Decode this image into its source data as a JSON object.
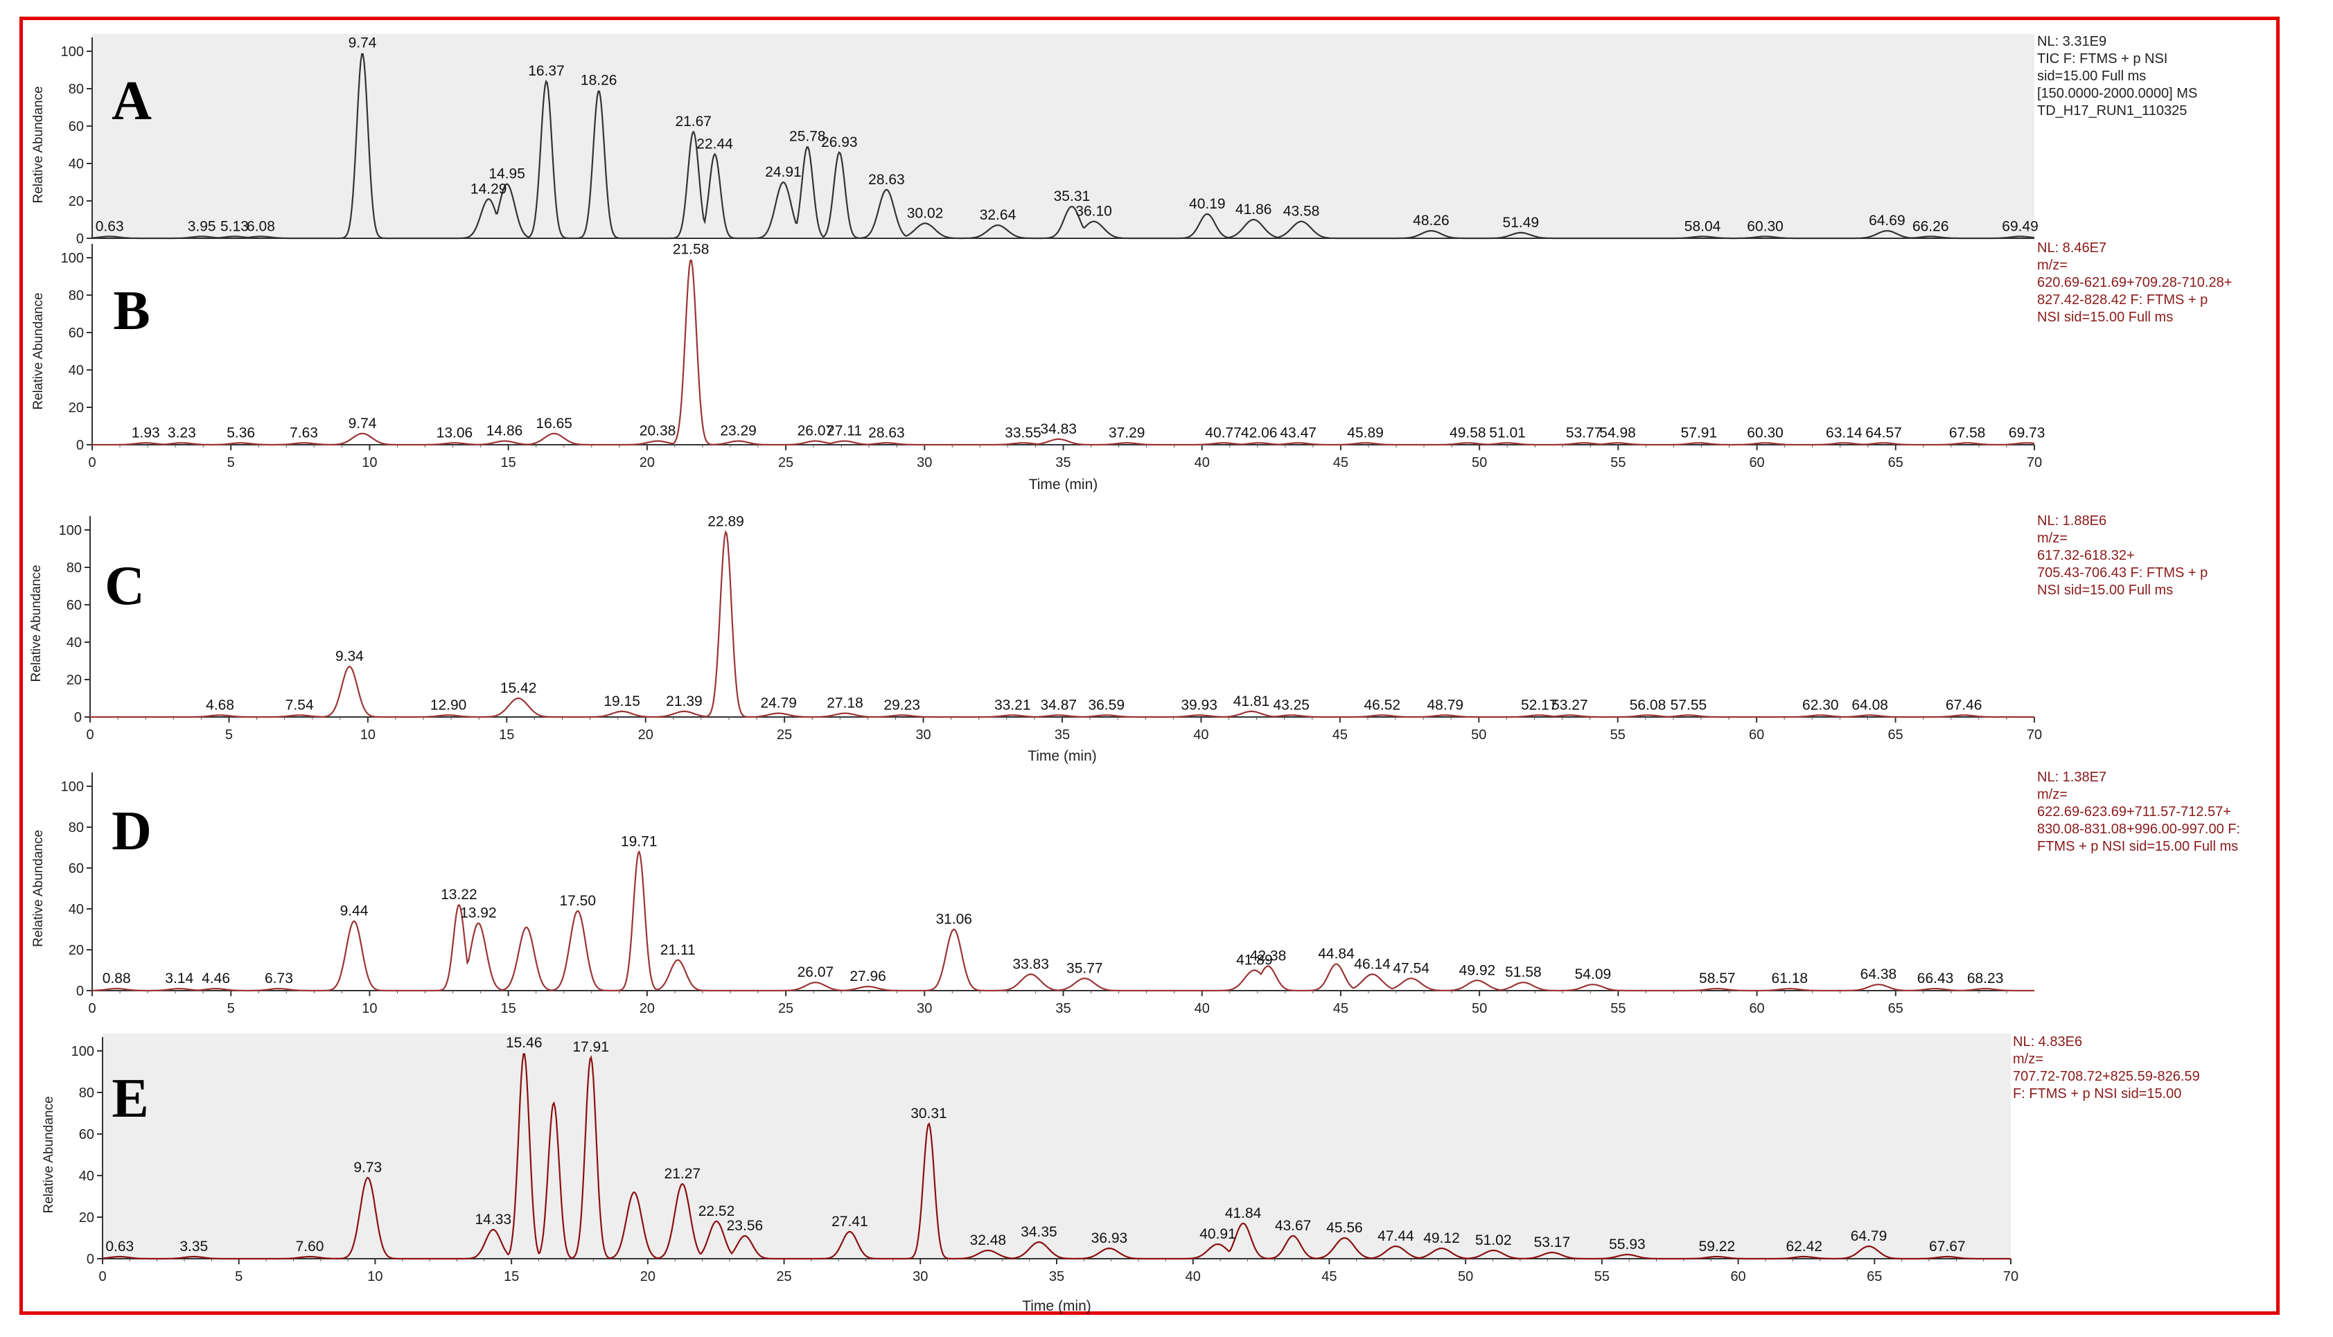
{
  "chart_data": [
    {
      "type": "line",
      "panel_letter": "A",
      "xlabel": "",
      "ylabel": "Relative Abundance",
      "xlim": [
        0,
        70
      ],
      "ylim": [
        0,
        100
      ],
      "y_ticks": [
        0,
        20,
        40,
        60,
        80,
        100
      ],
      "x_ticks": [],
      "background": "#eeeeee",
      "line_color": "#333333",
      "info_color": "#222222",
      "info": [
        "NL: 3.31E9",
        "TIC F: FTMS + p NSI",
        "sid=15.00  Full ms",
        "[150.0000-2000.0000]  MS",
        "TD_H17_RUN1_110325"
      ],
      "peaks": [
        {
          "x": 0.63,
          "label": "0.63",
          "y": 1
        },
        {
          "x": 3.95,
          "label": "3.95",
          "y": 1
        },
        {
          "x": 5.13,
          "label": "5.13",
          "y": 1
        },
        {
          "x": 6.08,
          "label": "6.08",
          "y": 1
        },
        {
          "x": 9.74,
          "label": "9.74",
          "y": 99
        },
        {
          "x": 14.29,
          "label": "14.29",
          "y": 21
        },
        {
          "x": 14.95,
          "label": "14.95",
          "y": 29
        },
        {
          "x": 16.37,
          "label": "16.37",
          "y": 84
        },
        {
          "x": 18.26,
          "label": "18.26",
          "y": 79
        },
        {
          "x": 21.67,
          "label": "21.67",
          "y": 57
        },
        {
          "x": 22.44,
          "label": "22.44",
          "y": 45
        },
        {
          "x": 24.91,
          "label": "24.91",
          "y": 30
        },
        {
          "x": 25.78,
          "label": "25.78",
          "y": 49
        },
        {
          "x": 26.93,
          "label": "26.93",
          "y": 46
        },
        {
          "x": 28.63,
          "label": "28.63",
          "y": 26
        },
        {
          "x": 30.02,
          "label": "30.02",
          "y": 8
        },
        {
          "x": 32.64,
          "label": "32.64",
          "y": 7
        },
        {
          "x": 35.31,
          "label": "35.31",
          "y": 17
        },
        {
          "x": 36.1,
          "label": "36.10",
          "y": 9
        },
        {
          "x": 40.19,
          "label": "40.19",
          "y": 13
        },
        {
          "x": 41.86,
          "label": "41.86",
          "y": 10
        },
        {
          "x": 43.58,
          "label": "43.58",
          "y": 9
        },
        {
          "x": 48.26,
          "label": "48.26",
          "y": 4
        },
        {
          "x": 51.49,
          "label": "51.49",
          "y": 3
        },
        {
          "x": 58.04,
          "label": "58.04",
          "y": 1
        },
        {
          "x": 60.3,
          "label": "60.30",
          "y": 1
        },
        {
          "x": 64.69,
          "label": "64.69",
          "y": 4
        },
        {
          "x": 66.26,
          "label": "66.26",
          "y": 1
        },
        {
          "x": 69.49,
          "label": "69.49",
          "y": 1
        }
      ]
    },
    {
      "type": "line",
      "panel_letter": "B",
      "xlabel": "Time (min)",
      "ylabel": "Relative Abundance",
      "xlim": [
        0,
        70
      ],
      "ylim": [
        0,
        100
      ],
      "y_ticks": [
        0,
        20,
        40,
        60,
        80,
        100
      ],
      "x_ticks": [
        0,
        5,
        10,
        15,
        20,
        25,
        30,
        35,
        40,
        45,
        50,
        55,
        60,
        65,
        70
      ],
      "background": "#ffffff",
      "line_color": "#9b3535",
      "info_color": "#8b1a1a",
      "info": [
        "NL: 8.46E7",
        "m/z=",
        "620.69-621.69+709.28-710.28+",
        "827.42-828.42 F: FTMS + p",
        "NSI sid=15.00  Full ms"
      ],
      "peaks": [
        {
          "x": 1.93,
          "label": "1.93",
          "y": 1
        },
        {
          "x": 3.23,
          "label": "3.23",
          "y": 1
        },
        {
          "x": 5.36,
          "label": "5.36",
          "y": 1
        },
        {
          "x": 7.63,
          "label": "7.63",
          "y": 1
        },
        {
          "x": 9.74,
          "label": "9.74",
          "y": 6
        },
        {
          "x": 13.06,
          "label": "13.06",
          "y": 1
        },
        {
          "x": 14.86,
          "label": "14.86",
          "y": 2
        },
        {
          "x": 16.65,
          "label": "16.65",
          "y": 6
        },
        {
          "x": 20.38,
          "label": "20.38",
          "y": 2
        },
        {
          "x": 21.58,
          "label": "21.58",
          "y": 99
        },
        {
          "x": 23.29,
          "label": "23.29",
          "y": 2
        },
        {
          "x": 26.07,
          "label": "26.07",
          "y": 2
        },
        {
          "x": 27.11,
          "label": "27.11",
          "y": 2
        },
        {
          "x": 28.63,
          "label": "28.63",
          "y": 1
        },
        {
          "x": 33.55,
          "label": "33.55",
          "y": 1
        },
        {
          "x": 34.83,
          "label": "34.83",
          "y": 3
        },
        {
          "x": 37.29,
          "label": "37.29",
          "y": 1
        },
        {
          "x": 40.77,
          "label": "40.77",
          "y": 1
        },
        {
          "x": 42.06,
          "label": "42.06",
          "y": 1
        },
        {
          "x": 43.47,
          "label": "43.47",
          "y": 1
        },
        {
          "x": 45.89,
          "label": "45.89",
          "y": 1
        },
        {
          "x": 49.58,
          "label": "49.58",
          "y": 1
        },
        {
          "x": 51.01,
          "label": "51.01",
          "y": 1
        },
        {
          "x": 53.77,
          "label": "53.77",
          "y": 1
        },
        {
          "x": 54.98,
          "label": "54.98",
          "y": 1
        },
        {
          "x": 57.91,
          "label": "57.91",
          "y": 1
        },
        {
          "x": 60.3,
          "label": "60.30",
          "y": 1
        },
        {
          "x": 63.14,
          "label": "63.14",
          "y": 1
        },
        {
          "x": 64.57,
          "label": "64.57",
          "y": 1
        },
        {
          "x": 67.58,
          "label": "67.58",
          "y": 1
        },
        {
          "x": 69.73,
          "label": "69.73",
          "y": 1
        }
      ]
    },
    {
      "type": "line",
      "panel_letter": "C",
      "xlabel": "Time (min)",
      "ylabel": "Relative Abundance",
      "xlim": [
        0,
        70
      ],
      "ylim": [
        0,
        100
      ],
      "y_ticks": [
        0,
        20,
        40,
        60,
        80,
        100
      ],
      "x_ticks": [
        0,
        5,
        10,
        15,
        20,
        25,
        30,
        35,
        40,
        45,
        50,
        55,
        60,
        65,
        70
      ],
      "background": "#ffffff",
      "line_color": "#9b3535",
      "info_color": "#8b1a1a",
      "info": [
        "NL: 1.88E6",
        "m/z=",
        "617.32-618.32+",
        "705.43-706.43 F: FTMS + p",
        "NSI sid=15.00  Full ms"
      ],
      "peaks": [
        {
          "x": 4.68,
          "label": "4.68",
          "y": 1
        },
        {
          "x": 7.54,
          "label": "7.54",
          "y": 1
        },
        {
          "x": 9.34,
          "label": "9.34",
          "y": 27
        },
        {
          "x": 12.9,
          "label": "12.90",
          "y": 1
        },
        {
          "x": 15.42,
          "label": "15.42",
          "y": 10
        },
        {
          "x": 19.15,
          "label": "19.15",
          "y": 3
        },
        {
          "x": 21.39,
          "label": "21.39",
          "y": 3
        },
        {
          "x": 22.89,
          "label": "22.89",
          "y": 99
        },
        {
          "x": 24.79,
          "label": "24.79",
          "y": 2
        },
        {
          "x": 27.18,
          "label": "27.18",
          "y": 2
        },
        {
          "x": 29.23,
          "label": "29.23",
          "y": 1
        },
        {
          "x": 33.21,
          "label": "33.21",
          "y": 1
        },
        {
          "x": 34.87,
          "label": "34.87",
          "y": 1
        },
        {
          "x": 36.59,
          "label": "36.59",
          "y": 1
        },
        {
          "x": 39.93,
          "label": "39.93",
          "y": 1
        },
        {
          "x": 41.81,
          "label": "41.81",
          "y": 3
        },
        {
          "x": 43.25,
          "label": "43.25",
          "y": 1
        },
        {
          "x": 46.52,
          "label": "46.52",
          "y": 1
        },
        {
          "x": 48.79,
          "label": "48.79",
          "y": 1
        },
        {
          "x": 52.17,
          "label": "52.17",
          "y": 1
        },
        {
          "x": 53.27,
          "label": "53.27",
          "y": 1
        },
        {
          "x": 56.08,
          "label": "56.08",
          "y": 1
        },
        {
          "x": 57.55,
          "label": "57.55",
          "y": 1
        },
        {
          "x": 62.3,
          "label": "62.30",
          "y": 1
        },
        {
          "x": 64.08,
          "label": "64.08",
          "y": 1
        },
        {
          "x": 67.46,
          "label": "67.46",
          "y": 1
        }
      ]
    },
    {
      "type": "line",
      "panel_letter": "D",
      "xlabel": "",
      "ylabel": "Relative Abundance",
      "xlim": [
        0,
        70
      ],
      "ylim": [
        0,
        100
      ],
      "y_ticks": [
        0,
        20,
        40,
        60,
        80,
        100
      ],
      "x_ticks": [
        0,
        5,
        10,
        15,
        20,
        25,
        30,
        35,
        40,
        45,
        50,
        55,
        60,
        65
      ],
      "background": "#ffffff",
      "line_color": "#9b3535",
      "info_color": "#8b1a1a",
      "info": [
        "NL: 1.38E7",
        "m/z=",
        "622.69-623.69+711.57-712.57+",
        "830.08-831.08+996.00-997.00 F:",
        "FTMS + p NSI sid=15.00  Full ms"
      ],
      "peaks": [
        {
          "x": 0.88,
          "label": "0.88",
          "y": 1
        },
        {
          "x": 3.14,
          "label": "3.14",
          "y": 1
        },
        {
          "x": 4.46,
          "label": "4.46",
          "y": 1
        },
        {
          "x": 6.73,
          "label": "6.73",
          "y": 1
        },
        {
          "x": 9.44,
          "label": "9.44",
          "y": 34
        },
        {
          "x": 13.22,
          "label": "13.22",
          "y": 42
        },
        {
          "x": 13.92,
          "label": "13.92",
          "y": 33
        },
        {
          "x": 15.65,
          "label": "",
          "y": 31
        },
        {
          "x": 17.5,
          "label": "17.50",
          "y": 39
        },
        {
          "x": 19.71,
          "label": "19.71",
          "y": 68
        },
        {
          "x": 21.11,
          "label": "21.11",
          "y": 15
        },
        {
          "x": 26.07,
          "label": "26.07",
          "y": 4
        },
        {
          "x": 27.96,
          "label": "27.96",
          "y": 2
        },
        {
          "x": 31.06,
          "label": "31.06",
          "y": 30
        },
        {
          "x": 33.83,
          "label": "33.83",
          "y": 8
        },
        {
          "x": 35.77,
          "label": "35.77",
          "y": 6
        },
        {
          "x": 41.89,
          "label": "41.89",
          "y": 10
        },
        {
          "x": 42.38,
          "label": "42.38",
          "y": 12
        },
        {
          "x": 44.84,
          "label": "44.84",
          "y": 13
        },
        {
          "x": 46.14,
          "label": "46.14",
          "y": 8
        },
        {
          "x": 47.54,
          "label": "47.54",
          "y": 6
        },
        {
          "x": 49.92,
          "label": "49.92",
          "y": 5
        },
        {
          "x": 51.58,
          "label": "51.58",
          "y": 4
        },
        {
          "x": 54.09,
          "label": "54.09",
          "y": 3
        },
        {
          "x": 58.57,
          "label": "58.57",
          "y": 1
        },
        {
          "x": 61.18,
          "label": "61.18",
          "y": 1
        },
        {
          "x": 64.38,
          "label": "64.38",
          "y": 3
        },
        {
          "x": 66.43,
          "label": "66.43",
          "y": 1
        },
        {
          "x": 68.23,
          "label": "68.23",
          "y": 1
        }
      ]
    },
    {
      "type": "line",
      "panel_letter": "E",
      "xlabel": "Time (min)",
      "ylabel": "Relative Abundance",
      "xlim": [
        0,
        70
      ],
      "ylim": [
        0,
        100
      ],
      "y_ticks": [
        0,
        20,
        40,
        60,
        80,
        100
      ],
      "x_ticks": [
        0,
        5,
        10,
        15,
        20,
        25,
        30,
        35,
        40,
        45,
        50,
        55,
        60,
        65,
        70
      ],
      "background": "#eeeeee",
      "line_color": "#8b1010",
      "info_color": "#8b1a1a",
      "info": [
        "NL: 4.83E6",
        "m/z=",
        "707.72-708.72+825.59-826.59",
        "F: FTMS + p NSI sid=15.00"
      ],
      "peaks": [
        {
          "x": 0.63,
          "label": "0.63",
          "y": 1
        },
        {
          "x": 3.35,
          "label": "3.35",
          "y": 1
        },
        {
          "x": 7.6,
          "label": "7.60",
          "y": 1
        },
        {
          "x": 9.73,
          "label": "9.73",
          "y": 39
        },
        {
          "x": 14.33,
          "label": "14.33",
          "y": 14
        },
        {
          "x": 15.46,
          "label": "15.46",
          "y": 99
        },
        {
          "x": 16.55,
          "label": "",
          "y": 75
        },
        {
          "x": 17.91,
          "label": "17.91",
          "y": 97
        },
        {
          "x": 19.5,
          "label": "",
          "y": 32
        },
        {
          "x": 21.27,
          "label": "21.27",
          "y": 36
        },
        {
          "x": 22.52,
          "label": "22.52",
          "y": 18
        },
        {
          "x": 23.56,
          "label": "23.56",
          "y": 11
        },
        {
          "x": 27.41,
          "label": "27.41",
          "y": 13
        },
        {
          "x": 30.31,
          "label": "30.31",
          "y": 65
        },
        {
          "x": 32.48,
          "label": "32.48",
          "y": 4
        },
        {
          "x": 34.35,
          "label": "34.35",
          "y": 8
        },
        {
          "x": 36.93,
          "label": "36.93",
          "y": 5
        },
        {
          "x": 40.91,
          "label": "40.91",
          "y": 7
        },
        {
          "x": 41.84,
          "label": "41.84",
          "y": 17
        },
        {
          "x": 43.67,
          "label": "43.67",
          "y": 11
        },
        {
          "x": 45.56,
          "label": "45.56",
          "y": 10
        },
        {
          "x": 47.44,
          "label": "47.44",
          "y": 6
        },
        {
          "x": 49.12,
          "label": "49.12",
          "y": 5
        },
        {
          "x": 51.02,
          "label": "51.02",
          "y": 4
        },
        {
          "x": 53.17,
          "label": "53.17",
          "y": 3
        },
        {
          "x": 55.93,
          "label": "55.93",
          "y": 2
        },
        {
          "x": 59.22,
          "label": "59.22",
          "y": 1
        },
        {
          "x": 62.42,
          "label": "62.42",
          "y": 1
        },
        {
          "x": 64.79,
          "label": "64.79",
          "y": 6
        },
        {
          "x": 67.67,
          "label": "67.67",
          "y": 1
        }
      ]
    }
  ]
}
